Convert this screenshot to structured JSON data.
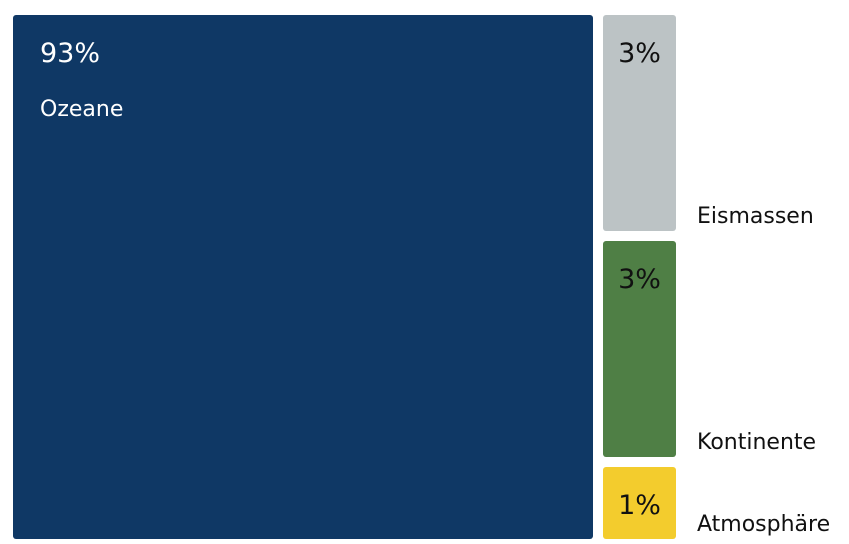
{
  "chart_data": {
    "type": "treemap",
    "categories": [
      "Ozeane",
      "Eismassen",
      "Kontinente",
      "Atmosphäre"
    ],
    "values": [
      93,
      3,
      3,
      1
    ],
    "value_labels": [
      "93%",
      "3%",
      "3%",
      "1%"
    ],
    "colors": [
      "#0f3865",
      "#bcc3c5",
      "#4f7f45",
      "#f3cc2d"
    ]
  }
}
